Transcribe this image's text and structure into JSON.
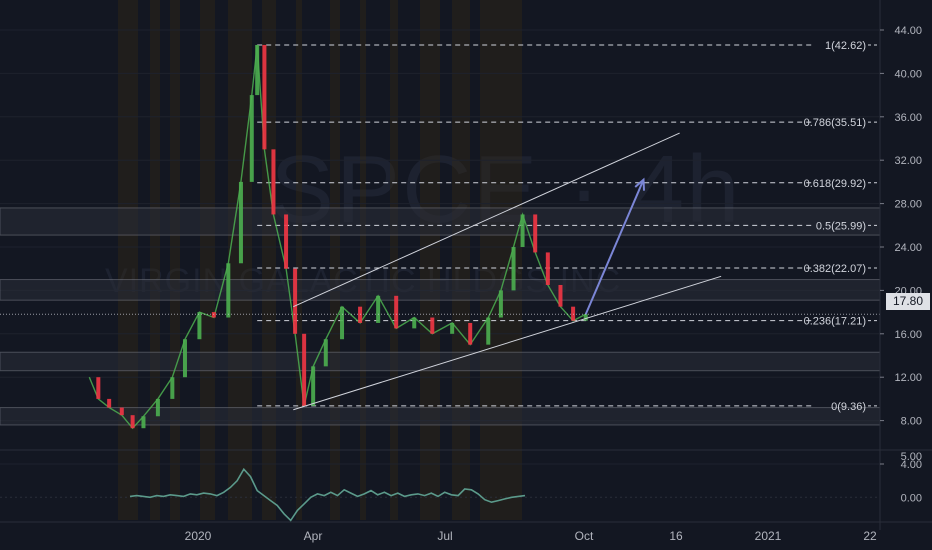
{
  "watermark": {
    "symbol": "SPCE",
    "interval": "4h",
    "company": "VIRGIN GALACTIC HLDGS INC"
  },
  "last_price": "17.80",
  "colors": {
    "background": "#131722",
    "up": "#4caf50",
    "down": "#f23645",
    "channel": "#d1d4dc",
    "arrow": "#7b86d6",
    "fib": "#d1d4dc",
    "zone_fill": "#2a2e39",
    "oscillator": "#5b9a8b",
    "session_shade": "#3a2a12"
  },
  "chart_data": [
    {
      "type": "candlestick",
      "title": "",
      "x_ticks": [
        "2020",
        "Apr",
        "Jul",
        "Oct",
        "16",
        "2021",
        "22"
      ],
      "y_ticks": [
        "4.00",
        "8.00",
        "12.00",
        "16.00",
        "20.00",
        "24.00",
        "28.00",
        "32.00",
        "36.00",
        "40.00",
        "44.00"
      ],
      "ylim": [
        4,
        44
      ],
      "price_path": [
        {
          "date": "2019-11-20",
          "price": 12.0
        },
        {
          "date": "2019-11-25",
          "price": 10.0
        },
        {
          "date": "2019-12-01",
          "price": 9.2
        },
        {
          "date": "2019-12-08",
          "price": 8.5
        },
        {
          "date": "2019-12-14",
          "price": 7.3
        },
        {
          "date": "2019-12-20",
          "price": 8.4
        },
        {
          "date": "2019-12-28",
          "price": 10.0
        },
        {
          "date": "2020-01-05",
          "price": 12.0
        },
        {
          "date": "2020-01-12",
          "price": 15.5
        },
        {
          "date": "2020-01-20",
          "price": 18.0
        },
        {
          "date": "2020-01-28",
          "price": 17.5
        },
        {
          "date": "2020-02-05",
          "price": 22.5
        },
        {
          "date": "2020-02-12",
          "price": 30.0
        },
        {
          "date": "2020-02-18",
          "price": 38.0
        },
        {
          "date": "2020-02-21",
          "price": 42.62
        },
        {
          "date": "2020-02-25",
          "price": 33.0
        },
        {
          "date": "2020-03-01",
          "price": 27.0
        },
        {
          "date": "2020-03-08",
          "price": 22.0
        },
        {
          "date": "2020-03-13",
          "price": 16.0
        },
        {
          "date": "2020-03-18",
          "price": 9.36
        },
        {
          "date": "2020-03-23",
          "price": 13.0
        },
        {
          "date": "2020-03-30",
          "price": 15.5
        },
        {
          "date": "2020-04-08",
          "price": 18.5
        },
        {
          "date": "2020-04-18",
          "price": 17.0
        },
        {
          "date": "2020-04-28",
          "price": 19.5
        },
        {
          "date": "2020-05-08",
          "price": 16.5
        },
        {
          "date": "2020-05-18",
          "price": 17.5
        },
        {
          "date": "2020-05-28",
          "price": 16.0
        },
        {
          "date": "2020-06-08",
          "price": 17.0
        },
        {
          "date": "2020-06-18",
          "price": 15.0
        },
        {
          "date": "2020-06-28",
          "price": 17.5
        },
        {
          "date": "2020-07-05",
          "price": 20.0
        },
        {
          "date": "2020-07-12",
          "price": 24.0
        },
        {
          "date": "2020-07-17",
          "price": 27.0
        },
        {
          "date": "2020-07-24",
          "price": 23.5
        },
        {
          "date": "2020-07-31",
          "price": 20.5
        },
        {
          "date": "2020-08-07",
          "price": 18.5
        },
        {
          "date": "2020-08-14",
          "price": 17.21
        },
        {
          "date": "2020-08-21",
          "price": 17.8
        }
      ],
      "fibonacci": [
        {
          "ratio": "1",
          "price": 42.62,
          "label": "1(42.62)"
        },
        {
          "ratio": "0.786",
          "price": 35.51,
          "label": "0.786(35.51)"
        },
        {
          "ratio": "0.618",
          "price": 29.92,
          "label": "0.618(29.92)"
        },
        {
          "ratio": "0.5",
          "price": 25.99,
          "label": "0.5(25.99)"
        },
        {
          "ratio": "0.382",
          "price": 22.07,
          "label": "0.382(22.07)"
        },
        {
          "ratio": "0.236",
          "price": 17.21,
          "label": "0.236(17.21)"
        },
        {
          "ratio": "0",
          "price": 9.36,
          "label": "0(9.36)"
        }
      ],
      "zones": [
        {
          "from": 25.1,
          "to": 27.6
        },
        {
          "from": 19.1,
          "to": 21.0
        },
        {
          "from": 12.6,
          "to": 14.3
        },
        {
          "from": 7.6,
          "to": 9.2
        }
      ],
      "channel": {
        "upper": [
          {
            "date": "2020-03-12",
            "price": 18.5
          },
          {
            "date": "2020-10-12",
            "price": 34.5
          }
        ],
        "lower": [
          {
            "date": "2020-03-12",
            "price": 9.0
          },
          {
            "date": "2020-11-04",
            "price": 21.3
          }
        ]
      },
      "arrow": {
        "from": {
          "date": "2020-08-21",
          "price": 17.8
        },
        "to": {
          "date": "2020-09-22",
          "price": 30.2
        }
      }
    },
    {
      "type": "line",
      "title": "",
      "y_ticks": [
        "5.00",
        "0.00"
      ],
      "ylim": [
        -3,
        5
      ],
      "series": [
        {
          "values": [
            0.1,
            0.2,
            0.1,
            0.0,
            0.2,
            0.1,
            0.3,
            0.2,
            0.1,
            0.4,
            0.3,
            0.5,
            0.4,
            0.2,
            0.6,
            1.2,
            2.0,
            3.4,
            2.5,
            0.8,
            0.2,
            -0.4,
            -1.0,
            -2.0,
            -2.8,
            -1.6,
            -0.8,
            0.0,
            0.4,
            0.2,
            0.6,
            0.2,
            0.9,
            0.5,
            0.1,
            0.4,
            0.8,
            0.3,
            0.6,
            0.2,
            0.5,
            0.1,
            0.3,
            0.4,
            0.2,
            0.5,
            0.1,
            0.6,
            0.3,
            0.2,
            1.0,
            0.9,
            0.4,
            -0.3,
            -0.6,
            -0.4,
            -0.2,
            0.0,
            0.1,
            0.2
          ]
        }
      ]
    }
  ]
}
